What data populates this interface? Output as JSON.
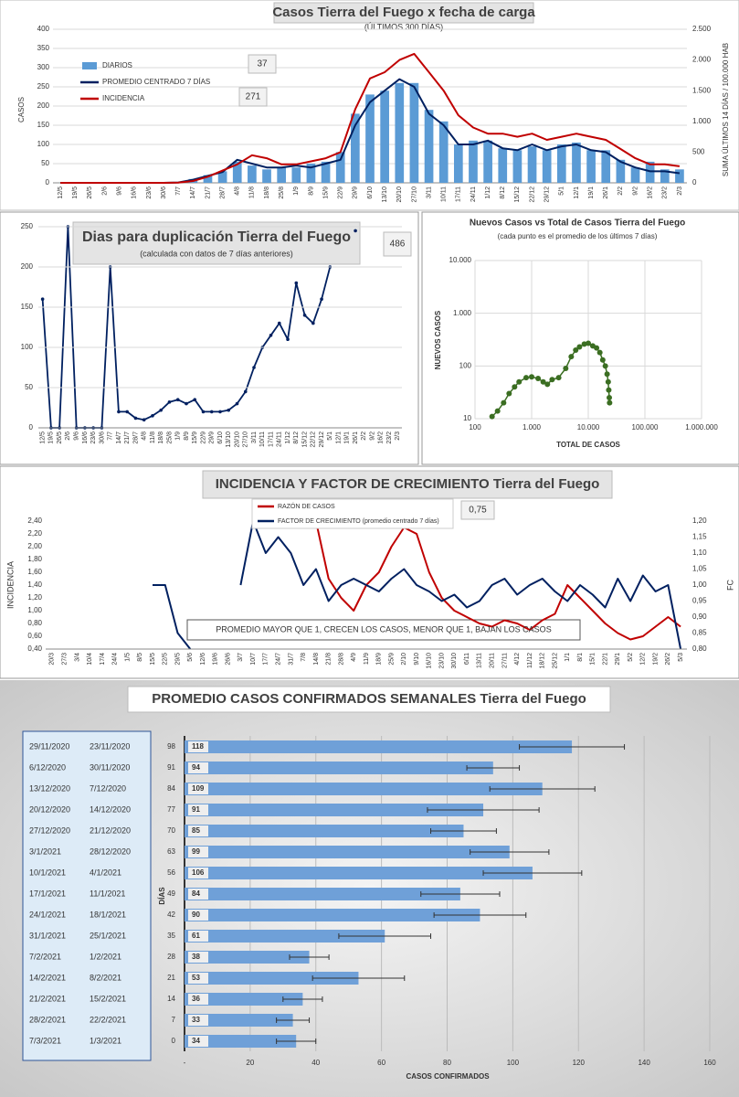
{
  "chart_data": [
    {
      "type": "combo",
      "title": "Casos Tierra del Fuego x fecha de carga",
      "subtitle": "(ÚLTIMOS 300 DÍAS)",
      "y_label": "CASOS",
      "y2_label": "SUMA ÚLTIMOS 14 DÍAS / 100.000 HAB",
      "categories": [
        "12/5",
        "19/5",
        "26/5",
        "2/6",
        "9/6",
        "16/6",
        "23/6",
        "30/6",
        "7/7",
        "14/7",
        "21/7",
        "28/7",
        "4/8",
        "11/8",
        "18/8",
        "25/8",
        "1/9",
        "8/9",
        "15/9",
        "22/9",
        "29/9",
        "6/10",
        "13/10",
        "20/10",
        "27/10",
        "3/11",
        "10/11",
        "17/11",
        "24/11",
        "1/12",
        "8/12",
        "15/12",
        "22/12",
        "29/12",
        "5/1",
        "12/1",
        "19/1",
        "26/1",
        "2/2",
        "9/2",
        "16/2",
        "23/2",
        "2/3"
      ],
      "ylim": [
        0,
        400
      ],
      "yticks": [
        0,
        50,
        100,
        150,
        200,
        250,
        300,
        350,
        400
      ],
      "y2lim": [
        0,
        2500
      ],
      "y2ticks": [
        0,
        500,
        {
          "value": 1000,
          "label": "1.000"
        },
        {
          "value": 1500,
          "label": "1.500"
        },
        {
          "value": 2000,
          "label": "2.000"
        },
        {
          "value": 2500,
          "label": "2.500"
        }
      ],
      "grid": true,
      "series": [
        {
          "name": "DIARIOS",
          "color": "#5b9bd5",
          "kind": "bar",
          "latest": 37,
          "values": [
            0,
            0,
            0,
            0,
            0,
            0,
            0,
            0,
            2,
            10,
            20,
            30,
            55,
            45,
            35,
            40,
            40,
            50,
            55,
            80,
            180,
            230,
            240,
            260,
            260,
            190,
            160,
            100,
            110,
            110,
            90,
            85,
            95,
            85,
            100,
            105,
            85,
            85,
            60,
            40,
            55,
            35,
            35
          ]
        },
        {
          "name": "PROMEDIO CENTRADO 7 DÍAS",
          "color": "#002060",
          "kind": "line",
          "values": [
            0,
            0,
            0,
            0,
            0,
            0,
            0,
            0,
            1,
            8,
            18,
            28,
            60,
            50,
            40,
            40,
            45,
            40,
            50,
            60,
            150,
            210,
            240,
            270,
            250,
            180,
            150,
            100,
            100,
            110,
            90,
            85,
            100,
            85,
            95,
            100,
            85,
            80,
            55,
            40,
            30,
            30,
            25
          ]
        },
        {
          "name": "INCIDENCIA",
          "color": "#c00000",
          "kind": "line",
          "axis": "y2",
          "latest": 271,
          "values": [
            0,
            0,
            0,
            0,
            0,
            0,
            0,
            0,
            5,
            30,
            100,
            200,
            300,
            450,
            400,
            300,
            300,
            350,
            400,
            500,
            1200,
            1700,
            1800,
            2000,
            2100,
            1800,
            1500,
            1100,
            900,
            800,
            800,
            750,
            800,
            700,
            750,
            800,
            750,
            700,
            550,
            400,
            300,
            300,
            270
          ]
        }
      ]
    },
    {
      "type": "line",
      "title": "Dias para duplicación Tierra del Fuego",
      "subtitle": "(calculada con datos de 7 días anteriores)",
      "latest": 486,
      "color": "#002060",
      "categories": [
        "12/5",
        "19/5",
        "26/5",
        "2/6",
        "9/6",
        "16/6",
        "23/6",
        "30/6",
        "7/7",
        "14/7",
        "21/7",
        "28/7",
        "4/8",
        "11/8",
        "18/8",
        "25/8",
        "1/9",
        "8/9",
        "15/9",
        "22/9",
        "29/9",
        "6/10",
        "13/10",
        "20/10",
        "27/10",
        "3/11",
        "10/11",
        "17/11",
        "24/11",
        "1/12",
        "8/12",
        "15/12",
        "22/12",
        "29/12",
        "5/1",
        "12/1",
        "19/1",
        "26/1",
        "2/2",
        "9/2",
        "16/2",
        "23/2",
        "2/3"
      ],
      "values": [
        160,
        0,
        0,
        250,
        0,
        0,
        0,
        0,
        200,
        20,
        20,
        12,
        10,
        15,
        22,
        32,
        35,
        30,
        35,
        20,
        20,
        20,
        22,
        30,
        45,
        75,
        100,
        115,
        130,
        110,
        180,
        140,
        130,
        160,
        200,
        null,
        null,
        245,
        null,
        null,
        null,
        null,
        null
      ],
      "ylim": [
        0,
        250
      ],
      "yticks": [
        0,
        50,
        100,
        150,
        200,
        250
      ],
      "grid": true
    },
    {
      "type": "scatter",
      "title": "Nuevos Casos vs Total de Casos Tierra del Fuego",
      "subtitle": "(cada punto es el promedio de los últimos 7 días)",
      "x_label": "TOTAL DE CASOS",
      "y_label": "NUEVOS CASOS",
      "color": "#3b6e22",
      "log_x": true,
      "log_y": true,
      "grid": true,
      "x": [
        200,
        250,
        320,
        400,
        500,
        600,
        800,
        1000,
        1300,
        1600,
        1900,
        2300,
        3000,
        4000,
        5000,
        6000,
        7000,
        8500,
        10000,
        12000,
        14000,
        16000,
        18000,
        20000,
        21500,
        22500,
        23000,
        23500,
        23800
      ],
      "values": [
        11,
        14,
        20,
        30,
        40,
        50,
        60,
        62,
        58,
        50,
        45,
        55,
        60,
        90,
        150,
        200,
        230,
        260,
        270,
        240,
        220,
        180,
        130,
        100,
        70,
        50,
        35,
        25,
        20
      ],
      "xlim": [
        100,
        1000000
      ],
      "xticks": [
        100,
        {
          "value": 1000,
          "label": "1.000"
        },
        {
          "value": 10000,
          "label": "10.000"
        },
        {
          "value": 100000,
          "label": "100.000"
        },
        {
          "value": 1000000,
          "label": "1.000.000"
        }
      ],
      "ylim": [
        10,
        10000
      ],
      "yticks": [
        10,
        100,
        {
          "value": 1000,
          "label": "1.000"
        },
        {
          "value": 10000,
          "label": "10.000"
        }
      ]
    },
    {
      "type": "dual_line",
      "title": "INCIDENCIA Y FACTOR DE CRECIMIENTO Tierra del Fuego",
      "y_label": "INCIDENCIA",
      "y2_label": "FC",
      "annotation": "PROMEDIO MAYOR QUE 1, CRECEN LOS CASOS, MENOR QUE 1, BAJAN LOS CASOS",
      "categories": [
        "20/3",
        "27/3",
        "3/4",
        "10/4",
        "17/4",
        "24/4",
        "1/5",
        "8/5",
        "15/5",
        "22/5",
        "29/5",
        "5/6",
        "12/6",
        "19/6",
        "26/6",
        "3/7",
        "10/7",
        "17/7",
        "24/7",
        "31/7",
        "7/8",
        "14/8",
        "21/8",
        "28/8",
        "4/9",
        "11/9",
        "18/9",
        "25/9",
        "2/10",
        "9/10",
        "16/10",
        "23/10",
        "30/10",
        "6/11",
        "13/11",
        "20/11",
        "27/11",
        "4/12",
        "11/12",
        "18/12",
        "25/12",
        "1/1",
        "8/1",
        "15/1",
        "22/1",
        "29/1",
        "5/2",
        "12/2",
        "19/2",
        "26/2",
        "5/3"
      ],
      "ylim": [
        0.4,
        2.4
      ],
      "yticks": [
        {
          "value": 0.4,
          "label": "0,40"
        },
        {
          "value": 0.6,
          "label": "0,60"
        },
        {
          "value": 0.8,
          "label": "0,80"
        },
        {
          "value": 1.0,
          "label": "1,00"
        },
        {
          "value": 1.2,
          "label": "1,20"
        },
        {
          "value": 1.4,
          "label": "1,40"
        },
        {
          "value": 1.6,
          "label": "1,60"
        },
        {
          "value": 1.8,
          "label": "1,80"
        },
        {
          "value": 2.0,
          "label": "2,00"
        },
        {
          "value": 2.2,
          "label": "2,20"
        },
        {
          "value": 2.4,
          "label": "2,40"
        }
      ],
      "y2lim": [
        0.8,
        1.2
      ],
      "y2ticks": [
        {
          "value": 0.8,
          "label": "0,80"
        },
        {
          "value": 0.85,
          "label": "0,85"
        },
        {
          "value": 0.9,
          "label": "0,90"
        },
        {
          "value": 0.95,
          "label": "0,95"
        },
        {
          "value": 1.0,
          "label": "1,00"
        },
        {
          "value": 1.05,
          "label": "1,05"
        },
        {
          "value": 1.1,
          "label": "1,10"
        },
        {
          "value": 1.15,
          "label": "1,15"
        },
        {
          "value": 1.2,
          "label": "1,20"
        }
      ],
      "series": [
        {
          "name": "RAZÓN DE CASOS",
          "color": "#c00000",
          "latest": 0.75,
          "latest_label": "0,75",
          "values": [
            null,
            null,
            null,
            null,
            null,
            null,
            null,
            null,
            null,
            null,
            null,
            null,
            null,
            null,
            null,
            null,
            null,
            2.4,
            2.3,
            2.4,
            2.4,
            2.4,
            1.5,
            1.2,
            1.0,
            1.4,
            1.6,
            2.0,
            2.3,
            2.2,
            1.6,
            1.2,
            1.0,
            0.9,
            0.8,
            0.75,
            0.85,
            0.8,
            0.7,
            0.85,
            0.95,
            1.4,
            1.2,
            1.0,
            0.8,
            0.65,
            0.55,
            0.6,
            0.75,
            0.9,
            0.75
          ]
        },
        {
          "name": "FACTOR DE CRECIMIENTO (promedio centrado 7 días)",
          "color": "#002060",
          "axis": "y2",
          "values": [
            null,
            null,
            null,
            null,
            null,
            null,
            null,
            null,
            1.0,
            1.0,
            0.85,
            0.8,
            null,
            null,
            null,
            1.0,
            1.2,
            1.1,
            1.15,
            1.1,
            1.0,
            1.05,
            0.95,
            1.0,
            1.02,
            1.0,
            0.98,
            1.02,
            1.05,
            1.0,
            0.98,
            0.95,
            0.97,
            0.93,
            0.95,
            1.0,
            1.02,
            0.97,
            1.0,
            1.02,
            0.98,
            0.95,
            1.0,
            0.97,
            0.93,
            1.02,
            0.95,
            1.03,
            0.98,
            1.0,
            0.8
          ]
        }
      ]
    },
    {
      "type": "hbar",
      "title": "PROMEDIO CASOS CONFIRMADOS SEMANALES Tierra del Fuego",
      "x_label": "CASOS CONFIRMADOS",
      "y_label": "DÍAS",
      "color": "#6fa0d8",
      "date_ranges": [
        [
          "29/11/2020",
          "23/11/2020"
        ],
        [
          "6/12/2020",
          "30/11/2020"
        ],
        [
          "13/12/2020",
          "7/12/2020"
        ],
        [
          "20/12/2020",
          "14/12/2020"
        ],
        [
          "27/12/2020",
          "21/12/2020"
        ],
        [
          "3/1/2021",
          "28/12/2020"
        ],
        [
          "10/1/2021",
          "4/1/2021"
        ],
        [
          "17/1/2021",
          "11/1/2021"
        ],
        [
          "24/1/2021",
          "18/1/2021"
        ],
        [
          "31/1/2021",
          "25/1/2021"
        ],
        [
          "7/2/2021",
          "1/2/2021"
        ],
        [
          "14/2/2021",
          "8/2/2021"
        ],
        [
          "21/2/2021",
          "15/2/2021"
        ],
        [
          "28/2/2021",
          "22/2/2021"
        ],
        [
          "7/3/2021",
          "1/3/2021"
        ]
      ],
      "days": [
        98,
        91,
        84,
        77,
        70,
        63,
        56,
        49,
        42,
        35,
        28,
        21,
        14,
        7,
        0
      ],
      "values": [
        118,
        94,
        109,
        91,
        85,
        99,
        106,
        84,
        90,
        61,
        38,
        53,
        36,
        33,
        34
      ],
      "errors": [
        16,
        8,
        16,
        17,
        10,
        12,
        15,
        12,
        14,
        14,
        6,
        14,
        6,
        5,
        6
      ],
      "xlim": [
        0,
        160
      ],
      "xticks": [
        {
          "value": 0,
          "label": "-"
        },
        20,
        40,
        60,
        80,
        100,
        120,
        140,
        160
      ],
      "grid": true
    }
  ]
}
